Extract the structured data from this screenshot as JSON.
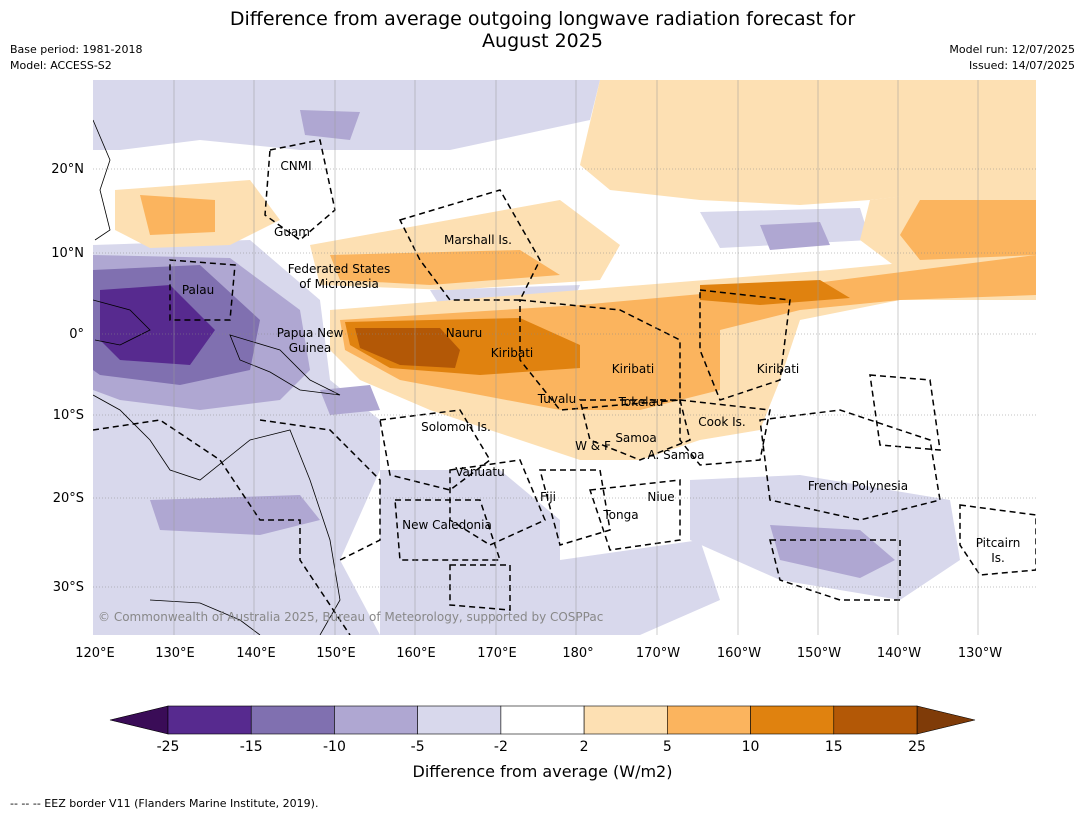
{
  "title": "Difference from average outgoing longwave radiation forecast for\nAugust 2025",
  "meta_left": [
    "Base period: 1981-2018",
    "Model: ACCESS-S2"
  ],
  "meta_right": [
    "Model run: 12/07/2025",
    "Issued: 14/07/2025"
  ],
  "lon_ticks": [
    "120°E",
    "130°E",
    "140°E",
    "150°E",
    "160°E",
    "170°E",
    "180°",
    "170°W",
    "160°W",
    "150°W",
    "140°W",
    "130°W"
  ],
  "lat_ticks": [
    "20°N",
    "10°N",
    "0°",
    "10°S",
    "20°S",
    "30°S"
  ],
  "places": [
    "CNMI",
    "Guam",
    "Marshall Is.",
    "Federated States\nof Micronesia",
    "Palau",
    "Papua New\nGuinea",
    "Nauru",
    "Kiribati",
    "Kiribati",
    "Kiribati",
    "Tuvalu",
    "Tokelau",
    "Solomon Is.",
    "W & F",
    "Samoa",
    "A. Samoa",
    "Cook Is.",
    "Vanuatu",
    "Fiji",
    "Niue",
    "Tonga",
    "New Caledonia",
    "French Polynesia",
    "Pitcairn\nIs."
  ],
  "copyright": "© Commonwealth of Australia 2025, Bureau of Meteorology, supported by COSPPac",
  "colorbar": {
    "title": "Difference from average (W/m2)",
    "ticks": [
      "-25",
      "-15",
      "-10",
      "-5",
      "-2",
      "2",
      "5",
      "10",
      "15",
      "25"
    ],
    "colors": [
      "#3a0c57",
      "#572a8f",
      "#8070b0",
      "#afa7d2",
      "#d8d8ec",
      "#ffffff",
      "#fde0b3",
      "#fbb45e",
      "#e0820f",
      "#b35806",
      "#7f3b08"
    ]
  },
  "footnote": "-- -- -- EEZ border V11 (Flanders Marine Institute, 2019)."
}
